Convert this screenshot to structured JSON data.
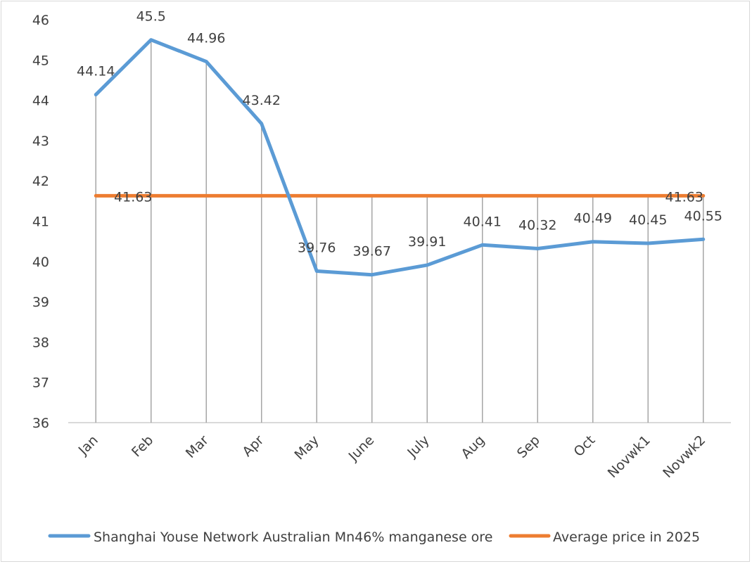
{
  "chart_data": {
    "type": "line",
    "title": "",
    "xlabel": "",
    "ylabel": "",
    "ylim": [
      36,
      46
    ],
    "yticks": [
      "36",
      "37",
      "38",
      "39",
      "40",
      "41",
      "42",
      "43",
      "44",
      "45",
      "46"
    ],
    "grid": false,
    "drop_lines": true,
    "legend_placement": "bottom",
    "categories": [
      "Jan",
      "Feb",
      "Mar",
      "Apr",
      "May",
      "June",
      "July",
      "Aug",
      "Sep",
      "Oct",
      "Novwk1",
      "Novwk2"
    ],
    "series": [
      {
        "name": "Shanghai Youse Network Australian Mn46% manganese ore",
        "color": "#5B9BD5",
        "values": [
          44.14,
          45.5,
          44.96,
          43.42,
          39.76,
          39.67,
          39.91,
          40.41,
          40.32,
          40.49,
          40.45,
          40.55
        ],
        "labels": [
          "44.14",
          "45.5",
          "44.96",
          "43.42",
          "39.76",
          "39.67",
          "39.91",
          "40.41",
          "40.32",
          "40.49",
          "40.45",
          "40.55"
        ]
      },
      {
        "name": "Average price in 2025",
        "color": "#ED7D31",
        "values": [
          41.63,
          41.63,
          41.63,
          41.63,
          41.63,
          41.63,
          41.63,
          41.63,
          41.63,
          41.63,
          41.63,
          41.63
        ],
        "labels": [
          "41.63",
          "",
          "",
          "",
          "",
          "",
          "",
          "",
          "",
          "",
          "",
          "41.63"
        ]
      }
    ]
  }
}
